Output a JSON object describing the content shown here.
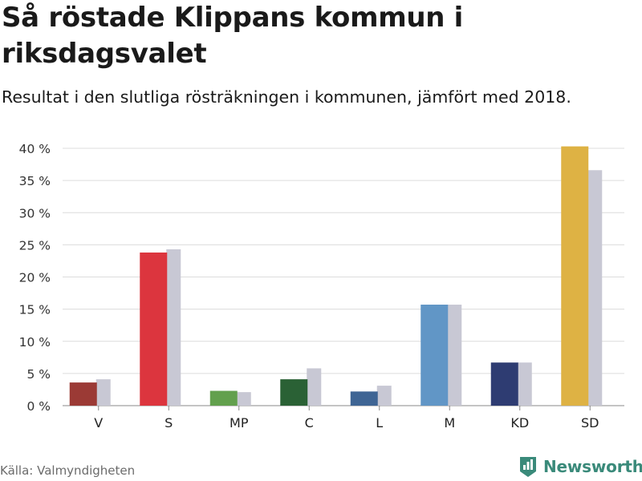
{
  "header": {
    "title": "Så röstade Klippans kommun i riksdagsvalet",
    "subtitle": "Resultat i den slutliga rösträkningen i kommunen, jämfört med 2018."
  },
  "footer": {
    "source": "Källa: Valmyndigheten",
    "brand": "Newsworthy",
    "brand_icon": "bar-chart-logo-icon",
    "brand_color": "#3a8a7a"
  },
  "chart_data": {
    "type": "bar",
    "categories": [
      "V",
      "S",
      "MP",
      "C",
      "L",
      "M",
      "KD",
      "SD"
    ],
    "series": [
      {
        "values": [
          3.6,
          23.8,
          2.3,
          4.1,
          2.2,
          15.7,
          6.7,
          40.3
        ],
        "colors": [
          "#9b3a35",
          "#dc353e",
          "#62a04d",
          "#2a6135",
          "#3f6594",
          "#6196c6",
          "#2e3c72",
          "#deb244"
        ]
      },
      {
        "values": [
          4.1,
          24.3,
          2.1,
          5.8,
          3.1,
          15.7,
          6.7,
          36.6
        ],
        "color": "#c8c8d4"
      }
    ],
    "ylim": [
      0,
      40
    ],
    "yticks": [
      0,
      5,
      10,
      15,
      20,
      25,
      30,
      35,
      40
    ],
    "ytick_labels": [
      "0 %",
      "5 %",
      "10 %",
      "15 %",
      "20 %",
      "25 %",
      "30 %",
      "35 %",
      "40 %"
    ],
    "grid": true,
    "legend": "none"
  }
}
